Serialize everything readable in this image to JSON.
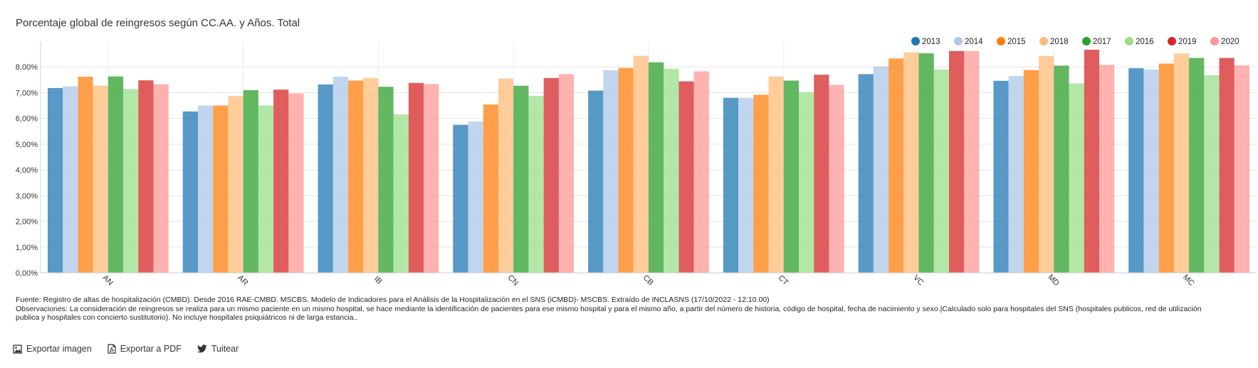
{
  "chart_data": {
    "type": "bar",
    "title": "Porcentaje global de reingresos según CC.AA. y Años. Total",
    "categories": [
      "AN",
      "AR",
      "IB",
      "CN",
      "CB",
      "CT",
      "VC",
      "MD",
      "MC"
    ],
    "y_ticks": [
      "0,00%",
      "1,00%",
      "2,00%",
      "3,00%",
      "4,00%",
      "5,00%",
      "6,00%",
      "7,00%",
      "8,00%"
    ],
    "ylim": [
      0,
      9
    ],
    "grid": true,
    "legend_position": "top-right",
    "series": [
      {
        "name": "2013",
        "color": "#1f77b4",
        "values": [
          7.18,
          6.27,
          7.32,
          5.75,
          7.08,
          6.8,
          7.72,
          7.46,
          7.95
        ]
      },
      {
        "name": "2014",
        "color": "#aec7e8",
        "values": [
          7.25,
          6.5,
          7.62,
          5.88,
          7.87,
          6.8,
          8.02,
          7.65,
          7.9
        ]
      },
      {
        "name": "2015",
        "color": "#ff7f0e",
        "values": [
          7.62,
          6.5,
          7.47,
          6.54,
          7.96,
          6.92,
          8.33,
          7.88,
          8.13
        ]
      },
      {
        "name": "2018",
        "color": "#ffbb78",
        "values": [
          7.27,
          6.87,
          7.57,
          7.55,
          8.43,
          7.63,
          8.57,
          8.43,
          8.52
        ]
      },
      {
        "name": "2017",
        "color": "#2ca02c",
        "values": [
          7.63,
          7.1,
          7.23,
          7.27,
          8.18,
          7.47,
          8.53,
          8.05,
          8.35
        ]
      },
      {
        "name": "2016",
        "color": "#98df8a",
        "values": [
          7.14,
          6.5,
          6.16,
          6.87,
          7.93,
          7.02,
          7.9,
          7.36,
          7.68
        ]
      },
      {
        "name": "2019",
        "color": "#d62728",
        "values": [
          7.48,
          7.12,
          7.38,
          7.57,
          7.44,
          7.7,
          8.62,
          8.67,
          8.35
        ]
      },
      {
        "name": "2020",
        "color": "#ff9896",
        "values": [
          7.33,
          6.97,
          7.34,
          7.72,
          7.83,
          7.3,
          8.62,
          8.08,
          8.06
        ]
      }
    ]
  },
  "notes": {
    "source": "Fuente: Registro de altas de hospitalización (CMBD). Desde 2016 RAE-CMBD. MSCBS. Modelo de Indicadores para el Análisis de la Hospitalización en el SNS (iCMBD)- MSCBS. Extraído de INCLASNS (17/10/2022 - 12:10.00)",
    "observations": "Observaciones: La consideración de reingresos se realiza para un mismo paciente en un mismo hospital, se hace mediante la identificación de pacientes para ese mismo hospital y para el mismo año, a partir del número de historia, código de hospital, fecha de nacimiento y sexo.|Calculado solo para hospitales del SNS (hospitales publicos, red de utilización publica y hospitales con concierto sustitutorio). No incluye hospitales psiquiátricos ni de larga estancia.."
  },
  "actions": {
    "export_image": "Exportar imagen",
    "export_pdf": "Exportar a PDF",
    "tweet": "Tuitear",
    "icons": [
      "image-icon",
      "pdf-icon",
      "twitter-icon"
    ]
  }
}
